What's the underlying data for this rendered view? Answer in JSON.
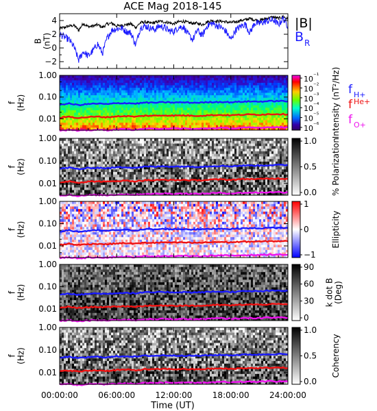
{
  "chart_data": {
    "title": "ACE Mag 2018-145",
    "xlabel": "Time (UT)",
    "x_tick_labels": [
      "00:00:00",
      "06:00:00",
      "12:00:00",
      "18:00:00",
      "24:00:00"
    ],
    "x_ticks_hours": [
      0,
      6,
      12,
      18,
      24
    ],
    "xlim_hours": [
      0,
      24
    ],
    "panels": [
      {
        "id": "b-field",
        "type": "line",
        "ylabel": "B\n(nT)",
        "yticks": [
          -2,
          0,
          2,
          4
        ],
        "ylim": [
          -3,
          5
        ],
        "legend": [
          {
            "label": "|B|",
            "color": "#000000"
          },
          {
            "label": "B",
            "sub": "R",
            "color": "#1a1aff"
          }
        ],
        "series": [
          {
            "name": "|B|",
            "color": "#000000",
            "x": [
              0,
              0.5,
              1,
              1.5,
              2,
              2.5,
              3,
              3.5,
              4,
              4.5,
              5,
              5.5,
              6,
              6.5,
              7,
              7.5,
              8,
              8.5,
              9,
              9.5,
              10,
              10.5,
              11,
              11.5,
              12,
              12.5,
              13,
              13.5,
              14,
              14.5,
              15,
              15.5,
              16,
              16.5,
              17,
              17.5,
              18,
              18.5,
              19,
              19.5,
              20,
              20.5,
              21,
              21.5,
              22,
              22.5,
              23,
              23.5,
              24
            ],
            "y": [
              2.8,
              3.0,
              3.2,
              3.3,
              2.6,
              3.6,
              3.1,
              3.2,
              3.4,
              3.0,
              3.5,
              3.6,
              3.2,
              3.3,
              3.4,
              3.5,
              3.0,
              3.7,
              3.8,
              3.6,
              3.7,
              3.9,
              3.8,
              3.7,
              3.5,
              3.8,
              3.9,
              3.7,
              3.6,
              3.6,
              3.4,
              3.8,
              4.0,
              3.9,
              3.9,
              3.8,
              3.7,
              3.8,
              4.0,
              4.1,
              4.3,
              4.1,
              4.0,
              4.2,
              4.4,
              4.5,
              4.3,
              4.6,
              4.2
            ]
          },
          {
            "name": "B_R",
            "color": "#1a1aff",
            "x": [
              0,
              0.5,
              1,
              1.5,
              2,
              2.5,
              3,
              3.5,
              4,
              4.5,
              5,
              5.5,
              6,
              6.5,
              7,
              7.5,
              8,
              8.5,
              9,
              9.5,
              10,
              10.5,
              11,
              11.5,
              12,
              12.5,
              13,
              13.5,
              14,
              14.5,
              15,
              15.5,
              16,
              16.5,
              17,
              17.5,
              18,
              18.5,
              19,
              19.5,
              20,
              20.5,
              21,
              21.5,
              22,
              22.5,
              23,
              23.5,
              24
            ],
            "y": [
              2.0,
              1.6,
              1.2,
              0.2,
              -1.8,
              -0.5,
              -1.2,
              -0.4,
              0.6,
              -0.8,
              1.5,
              2.6,
              2.8,
              2.9,
              2.4,
              2.2,
              0.4,
              3.0,
              3.2,
              2.9,
              2.7,
              3.2,
              3.0,
              2.5,
              2.4,
              3.0,
              3.1,
              2.0,
              1.2,
              2.6,
              1.8,
              3.2,
              3.6,
              3.3,
              3.0,
              2.4,
              1.2,
              2.6,
              3.1,
              3.5,
              2.2,
              3.6,
              3.6,
              3.8,
              4.0,
              4.1,
              3.4,
              4.3,
              3.2
            ]
          }
        ]
      },
      {
        "id": "intensity",
        "type": "heatmap",
        "ylabel": "f\n(Hz)",
        "ytick_labels": [
          "1.00",
          "0.10",
          "0.01"
        ],
        "ylim": [
          0.003,
          1.0
        ],
        "yscale": "log",
        "colorbar_label": "Intensity (nT²/Hz)",
        "colorbar_ticks": [
          "10⁻¹",
          "10⁻²",
          "10⁻³",
          "10⁻⁴",
          "10⁻⁵",
          "10⁻⁶"
        ],
        "colormap": "rainbow",
        "legend": [
          {
            "label": "f",
            "sub": "H+",
            "color": "#1a1aff"
          },
          {
            "label": "f",
            "sub": "He+",
            "color": "#ee1111"
          },
          {
            "label": "f",
            "sub": "O+",
            "color": "#ee11ee"
          }
        ]
      },
      {
        "id": "polarization",
        "type": "heatmap",
        "ylabel": "f\n(Hz)",
        "ytick_labels": [
          "1.00",
          "0.10",
          "0.01"
        ],
        "ylim": [
          0.003,
          1.0
        ],
        "yscale": "log",
        "colorbar_label": "% Polarization",
        "colorbar_ticks": [
          "1.0",
          "0.5",
          "0.0"
        ],
        "colormap": "gray"
      },
      {
        "id": "ellipticity",
        "type": "heatmap",
        "ylabel": "f\n(Hz)",
        "ytick_labels": [
          "1.00",
          "0.10",
          "0.01"
        ],
        "ylim": [
          0.003,
          1.0
        ],
        "yscale": "log",
        "colorbar_label": "Ellipticity",
        "colorbar_ticks": [
          "1",
          "0",
          "−1"
        ],
        "colormap": "red-white-blue"
      },
      {
        "id": "k-dot-b",
        "type": "heatmap",
        "ylabel": "f\n(Hz)",
        "ytick_labels": [
          "1.00",
          "0.10",
          "0.01"
        ],
        "ylim": [
          0.003,
          1.0
        ],
        "yscale": "log",
        "colorbar_label": "k dot B\n(Deg)",
        "colorbar_ticks": [
          "90",
          "60",
          "30",
          "0"
        ],
        "colormap": "gray"
      },
      {
        "id": "coherency",
        "type": "heatmap",
        "ylabel": "f\n(Hz)",
        "ytick_labels": [
          "1.00",
          "0.10",
          "0.01"
        ],
        "ylim": [
          0.003,
          1.0
        ],
        "yscale": "log",
        "colorbar_label": "Coherency",
        "colorbar_ticks": [
          "1.0",
          "0.5",
          "0.0"
        ],
        "colormap": "gray"
      }
    ],
    "gyrofrequency_lines": [
      {
        "name": "f_H+",
        "color": "#1a1aff",
        "x": [
          0,
          1,
          2,
          3,
          4,
          5,
          6,
          7,
          8,
          9,
          10,
          11,
          12,
          13,
          14,
          15,
          16,
          17,
          18,
          19,
          20,
          21,
          22,
          23,
          24
        ],
        "y": [
          0.045,
          0.05,
          0.043,
          0.048,
          0.05,
          0.047,
          0.052,
          0.053,
          0.05,
          0.056,
          0.055,
          0.058,
          0.056,
          0.057,
          0.055,
          0.056,
          0.059,
          0.06,
          0.058,
          0.061,
          0.063,
          0.062,
          0.065,
          0.066,
          0.064
        ]
      },
      {
        "name": "f_He+",
        "color": "#ee1111",
        "x": [
          0,
          1,
          2,
          3,
          4,
          5,
          6,
          7,
          8,
          9,
          10,
          11,
          12,
          13,
          14,
          15,
          16,
          17,
          18,
          19,
          20,
          21,
          22,
          23,
          24
        ],
        "y": [
          0.011,
          0.0125,
          0.011,
          0.012,
          0.0125,
          0.0118,
          0.013,
          0.0133,
          0.0125,
          0.014,
          0.0138,
          0.0145,
          0.014,
          0.0143,
          0.0138,
          0.014,
          0.0148,
          0.015,
          0.0145,
          0.0153,
          0.0158,
          0.0155,
          0.0163,
          0.0165,
          0.016
        ]
      },
      {
        "name": "f_O+",
        "color": "#ee11ee",
        "x": [
          0,
          1,
          2,
          3,
          4,
          5,
          6,
          7,
          8,
          9,
          10,
          11,
          12,
          13,
          14,
          15,
          16,
          17,
          18,
          19,
          20,
          21,
          22,
          23,
          24
        ],
        "y": [
          0.0029,
          0.0031,
          0.0028,
          0.003,
          0.0031,
          0.003,
          0.0032,
          0.0033,
          0.0031,
          0.0035,
          0.0034,
          0.0036,
          0.0035,
          0.0036,
          0.0034,
          0.0035,
          0.0037,
          0.0038,
          0.0036,
          0.0038,
          0.0039,
          0.0039,
          0.0041,
          0.0041,
          0.004
        ]
      }
    ]
  }
}
